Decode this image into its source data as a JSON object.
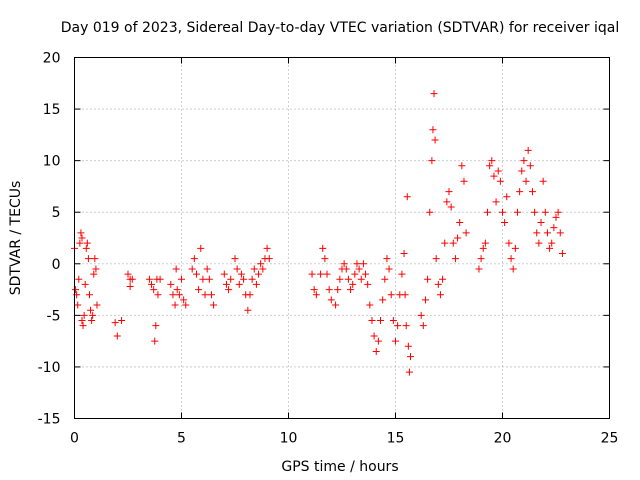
{
  "chart_data": {
    "type": "scatter",
    "title": "Day 019 of 2023, Sidereal Day-to-day VTEC variation (SDTVAR) for receiver iqal",
    "xlabel": "GPS time / hours",
    "ylabel": "SDTVAR / TECUs",
    "xlim": [
      0,
      25
    ],
    "ylim": [
      -15,
      20
    ],
    "xticks": [
      0,
      5,
      10,
      15,
      20,
      25
    ],
    "yticks": [
      -15,
      -10,
      -5,
      0,
      5,
      10,
      15,
      20
    ],
    "grid": true,
    "marker": "+",
    "series": [
      {
        "name": "SDTVAR",
        "color": "#ff0000",
        "points": [
          [
            0.0,
            1.5
          ],
          [
            0.05,
            -2.5
          ],
          [
            0.1,
            -3.0
          ],
          [
            0.15,
            -4.0
          ],
          [
            0.2,
            -1.5
          ],
          [
            0.25,
            2.0
          ],
          [
            0.3,
            3.0
          ],
          [
            0.35,
            2.5
          ],
          [
            0.35,
            -5.5
          ],
          [
            0.4,
            -6.0
          ],
          [
            0.45,
            -5.0
          ],
          [
            0.5,
            -2.0
          ],
          [
            0.55,
            1.5
          ],
          [
            0.6,
            2.0
          ],
          [
            0.65,
            0.5
          ],
          [
            0.7,
            -3.0
          ],
          [
            0.75,
            -4.5
          ],
          [
            0.8,
            -5.5
          ],
          [
            0.85,
            -5.0
          ],
          [
            0.9,
            -1.0
          ],
          [
            0.95,
            0.5
          ],
          [
            1.0,
            -0.5
          ],
          [
            1.05,
            -4.0
          ],
          [
            1.9,
            -5.7
          ],
          [
            2.0,
            -7.0
          ],
          [
            2.2,
            -5.5
          ],
          [
            2.5,
            -1.0
          ],
          [
            2.6,
            -1.5
          ],
          [
            2.7,
            -1.5
          ],
          [
            2.6,
            -2.2
          ],
          [
            3.5,
            -1.5
          ],
          [
            3.6,
            -2.0
          ],
          [
            3.7,
            -2.5
          ],
          [
            3.75,
            -7.5
          ],
          [
            3.8,
            -6.0
          ],
          [
            3.85,
            -1.5
          ],
          [
            3.9,
            -3.0
          ],
          [
            4.0,
            -1.5
          ],
          [
            4.5,
            -2.0
          ],
          [
            4.6,
            -3.0
          ],
          [
            4.7,
            -4.0
          ],
          [
            4.75,
            -0.5
          ],
          [
            4.8,
            -2.5
          ],
          [
            4.9,
            -3.0
          ],
          [
            5.0,
            -1.5
          ],
          [
            5.1,
            -3.5
          ],
          [
            5.2,
            -4.0
          ],
          [
            5.5,
            -0.5
          ],
          [
            5.6,
            0.5
          ],
          [
            5.7,
            -1.0
          ],
          [
            5.8,
            -2.5
          ],
          [
            5.9,
            1.5
          ],
          [
            6.0,
            -1.5
          ],
          [
            6.1,
            -3.0
          ],
          [
            6.2,
            -0.5
          ],
          [
            6.3,
            -1.5
          ],
          [
            6.4,
            -3.0
          ],
          [
            6.5,
            -4.0
          ],
          [
            7.0,
            -1.0
          ],
          [
            7.1,
            -2.0
          ],
          [
            7.2,
            -2.5
          ],
          [
            7.3,
            -1.5
          ],
          [
            7.5,
            0.5
          ],
          [
            7.6,
            -0.5
          ],
          [
            7.7,
            -2.0
          ],
          [
            7.8,
            -1.0
          ],
          [
            7.9,
            -1.5
          ],
          [
            8.0,
            -3.0
          ],
          [
            8.1,
            -4.5
          ],
          [
            8.2,
            -3.0
          ],
          [
            8.3,
            -1.5
          ],
          [
            8.4,
            -0.5
          ],
          [
            8.5,
            -2.0
          ],
          [
            8.6,
            -1.0
          ],
          [
            8.7,
            0.0
          ],
          [
            8.8,
            -0.5
          ],
          [
            8.9,
            0.5
          ],
          [
            9.0,
            1.5
          ],
          [
            9.1,
            0.5
          ],
          [
            11.1,
            -1.0
          ],
          [
            11.2,
            -2.5
          ],
          [
            11.3,
            -3.0
          ],
          [
            11.5,
            -1.0
          ],
          [
            11.6,
            1.5
          ],
          [
            11.7,
            0.5
          ],
          [
            11.8,
            -1.0
          ],
          [
            11.9,
            -2.5
          ],
          [
            12.0,
            -3.5
          ],
          [
            12.2,
            -4.0
          ],
          [
            12.3,
            -2.5
          ],
          [
            12.4,
            -1.5
          ],
          [
            12.5,
            -0.5
          ],
          [
            12.6,
            0.0
          ],
          [
            12.7,
            -0.5
          ],
          [
            12.8,
            -1.5
          ],
          [
            12.9,
            -2.5
          ],
          [
            13.0,
            -2.0
          ],
          [
            13.1,
            -1.0
          ],
          [
            13.2,
            0.0
          ],
          [
            13.3,
            -0.5
          ],
          [
            13.4,
            -1.5
          ],
          [
            13.5,
            0.0
          ],
          [
            13.6,
            -1.0
          ],
          [
            13.7,
            -2.0
          ],
          [
            13.8,
            -4.0
          ],
          [
            13.9,
            -5.5
          ],
          [
            14.0,
            -7.0
          ],
          [
            14.1,
            -8.5
          ],
          [
            14.2,
            -7.5
          ],
          [
            14.3,
            -5.5
          ],
          [
            14.4,
            -3.5
          ],
          [
            14.5,
            -1.5
          ],
          [
            14.6,
            0.5
          ],
          [
            14.7,
            -0.5
          ],
          [
            14.8,
            -3.0
          ],
          [
            14.9,
            -5.5
          ],
          [
            15.0,
            -7.5
          ],
          [
            15.1,
            -6.0
          ],
          [
            15.2,
            -3.0
          ],
          [
            15.3,
            -1.0
          ],
          [
            15.4,
            1.0
          ],
          [
            15.45,
            -3.0
          ],
          [
            15.5,
            -6.0
          ],
          [
            15.55,
            6.5
          ],
          [
            15.6,
            -8.0
          ],
          [
            15.65,
            -10.5
          ],
          [
            15.7,
            -9.0
          ],
          [
            16.2,
            -5.0
          ],
          [
            16.3,
            -6.0
          ],
          [
            16.4,
            -3.5
          ],
          [
            16.5,
            -1.5
          ],
          [
            16.6,
            5.0
          ],
          [
            16.7,
            10.0
          ],
          [
            16.75,
            13.0
          ],
          [
            16.8,
            16.5
          ],
          [
            16.85,
            12.0
          ],
          [
            16.9,
            0.5
          ],
          [
            17.0,
            -2.0
          ],
          [
            17.1,
            -3.0
          ],
          [
            17.2,
            -1.5
          ],
          [
            17.3,
            2.0
          ],
          [
            17.4,
            6.0
          ],
          [
            17.5,
            7.0
          ],
          [
            17.6,
            5.5
          ],
          [
            17.7,
            2.0
          ],
          [
            17.8,
            0.5
          ],
          [
            17.9,
            2.5
          ],
          [
            18.0,
            4.0
          ],
          [
            18.1,
            9.5
          ],
          [
            18.2,
            8.0
          ],
          [
            18.3,
            3.0
          ],
          [
            18.9,
            -0.5
          ],
          [
            19.0,
            0.5
          ],
          [
            19.1,
            1.5
          ],
          [
            19.2,
            2.0
          ],
          [
            19.3,
            5.0
          ],
          [
            19.4,
            9.5
          ],
          [
            19.5,
            10.0
          ],
          [
            19.6,
            8.5
          ],
          [
            19.7,
            6.0
          ],
          [
            19.8,
            9.0
          ],
          [
            19.9,
            8.0
          ],
          [
            20.0,
            5.0
          ],
          [
            20.1,
            4.0
          ],
          [
            20.2,
            6.5
          ],
          [
            20.3,
            2.0
          ],
          [
            20.4,
            0.5
          ],
          [
            20.5,
            -0.5
          ],
          [
            20.6,
            1.5
          ],
          [
            20.7,
            5.0
          ],
          [
            20.8,
            7.0
          ],
          [
            20.9,
            9.0
          ],
          [
            21.0,
            10.0
          ],
          [
            21.1,
            8.0
          ],
          [
            21.2,
            11.0
          ],
          [
            21.3,
            9.5
          ],
          [
            21.4,
            7.0
          ],
          [
            21.5,
            5.0
          ],
          [
            21.6,
            3.0
          ],
          [
            21.7,
            2.0
          ],
          [
            21.8,
            4.0
          ],
          [
            21.9,
            8.0
          ],
          [
            22.0,
            5.0
          ],
          [
            22.1,
            3.0
          ],
          [
            22.2,
            1.5
          ],
          [
            22.3,
            2.0
          ],
          [
            22.4,
            3.5
          ],
          [
            22.5,
            4.5
          ],
          [
            22.6,
            5.0
          ],
          [
            22.7,
            3.0
          ],
          [
            22.8,
            1.0
          ]
        ]
      }
    ]
  }
}
